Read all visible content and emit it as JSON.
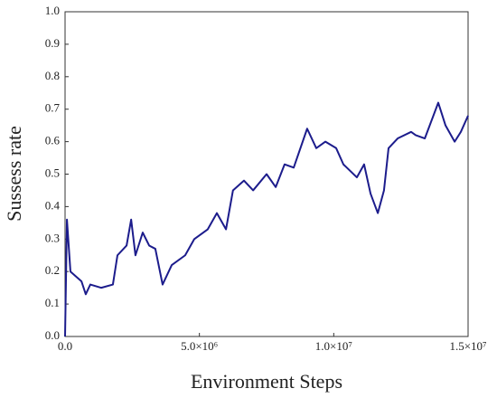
{
  "chart_data": {
    "type": "line",
    "xlabel": "Environment Steps",
    "ylabel": "Sussess rate",
    "x": [
      0,
      70000,
      200000,
      610000,
      770000,
      940000,
      1350000,
      1780000,
      1950000,
      2290000,
      2460000,
      2620000,
      2890000,
      3130000,
      3360000,
      3630000,
      3970000,
      4470000,
      4810000,
      5310000,
      5650000,
      5990000,
      6250000,
      6660000,
      7000000,
      7500000,
      7840000,
      8170000,
      8510000,
      9010000,
      9350000,
      9690000,
      10090000,
      10360000,
      10860000,
      11130000,
      11370000,
      11640000,
      11870000,
      12040000,
      12380000,
      12880000,
      13050000,
      13390000,
      13890000,
      14160000,
      14500000,
      14730000,
      15000000
    ],
    "series": [
      {
        "color": "#1c1c8c",
        "values": [
          0.0,
          0.36,
          0.2,
          0.17,
          0.13,
          0.16,
          0.15,
          0.16,
          0.25,
          0.28,
          0.36,
          0.25,
          0.32,
          0.28,
          0.27,
          0.16,
          0.22,
          0.25,
          0.3,
          0.33,
          0.38,
          0.33,
          0.45,
          0.48,
          0.45,
          0.5,
          0.46,
          0.53,
          0.52,
          0.64,
          0.58,
          0.6,
          0.58,
          0.53,
          0.49,
          0.53,
          0.44,
          0.38,
          0.45,
          0.58,
          0.61,
          0.63,
          0.62,
          0.61,
          0.72,
          0.65,
          0.6,
          0.63,
          0.68
        ]
      }
    ],
    "xlim": [
      0,
      15000000
    ],
    "xticks": [
      {
        "value": 0,
        "label": "0.0"
      },
      {
        "value": 5000000,
        "label": "5.0×10⁶"
      },
      {
        "value": 10000000,
        "label": "1.0×10⁷"
      },
      {
        "value": 15000000,
        "label": "1.5×10⁷"
      }
    ],
    "ylim": [
      0,
      1
    ],
    "yticks": [
      {
        "value": 0,
        "label": "0.0"
      },
      0.1,
      0.2,
      0.3,
      0.4,
      0.5,
      0.6,
      0.7,
      0.8,
      0.9,
      {
        "value": 1,
        "label": "1.0"
      }
    ],
    "grid": false
  }
}
